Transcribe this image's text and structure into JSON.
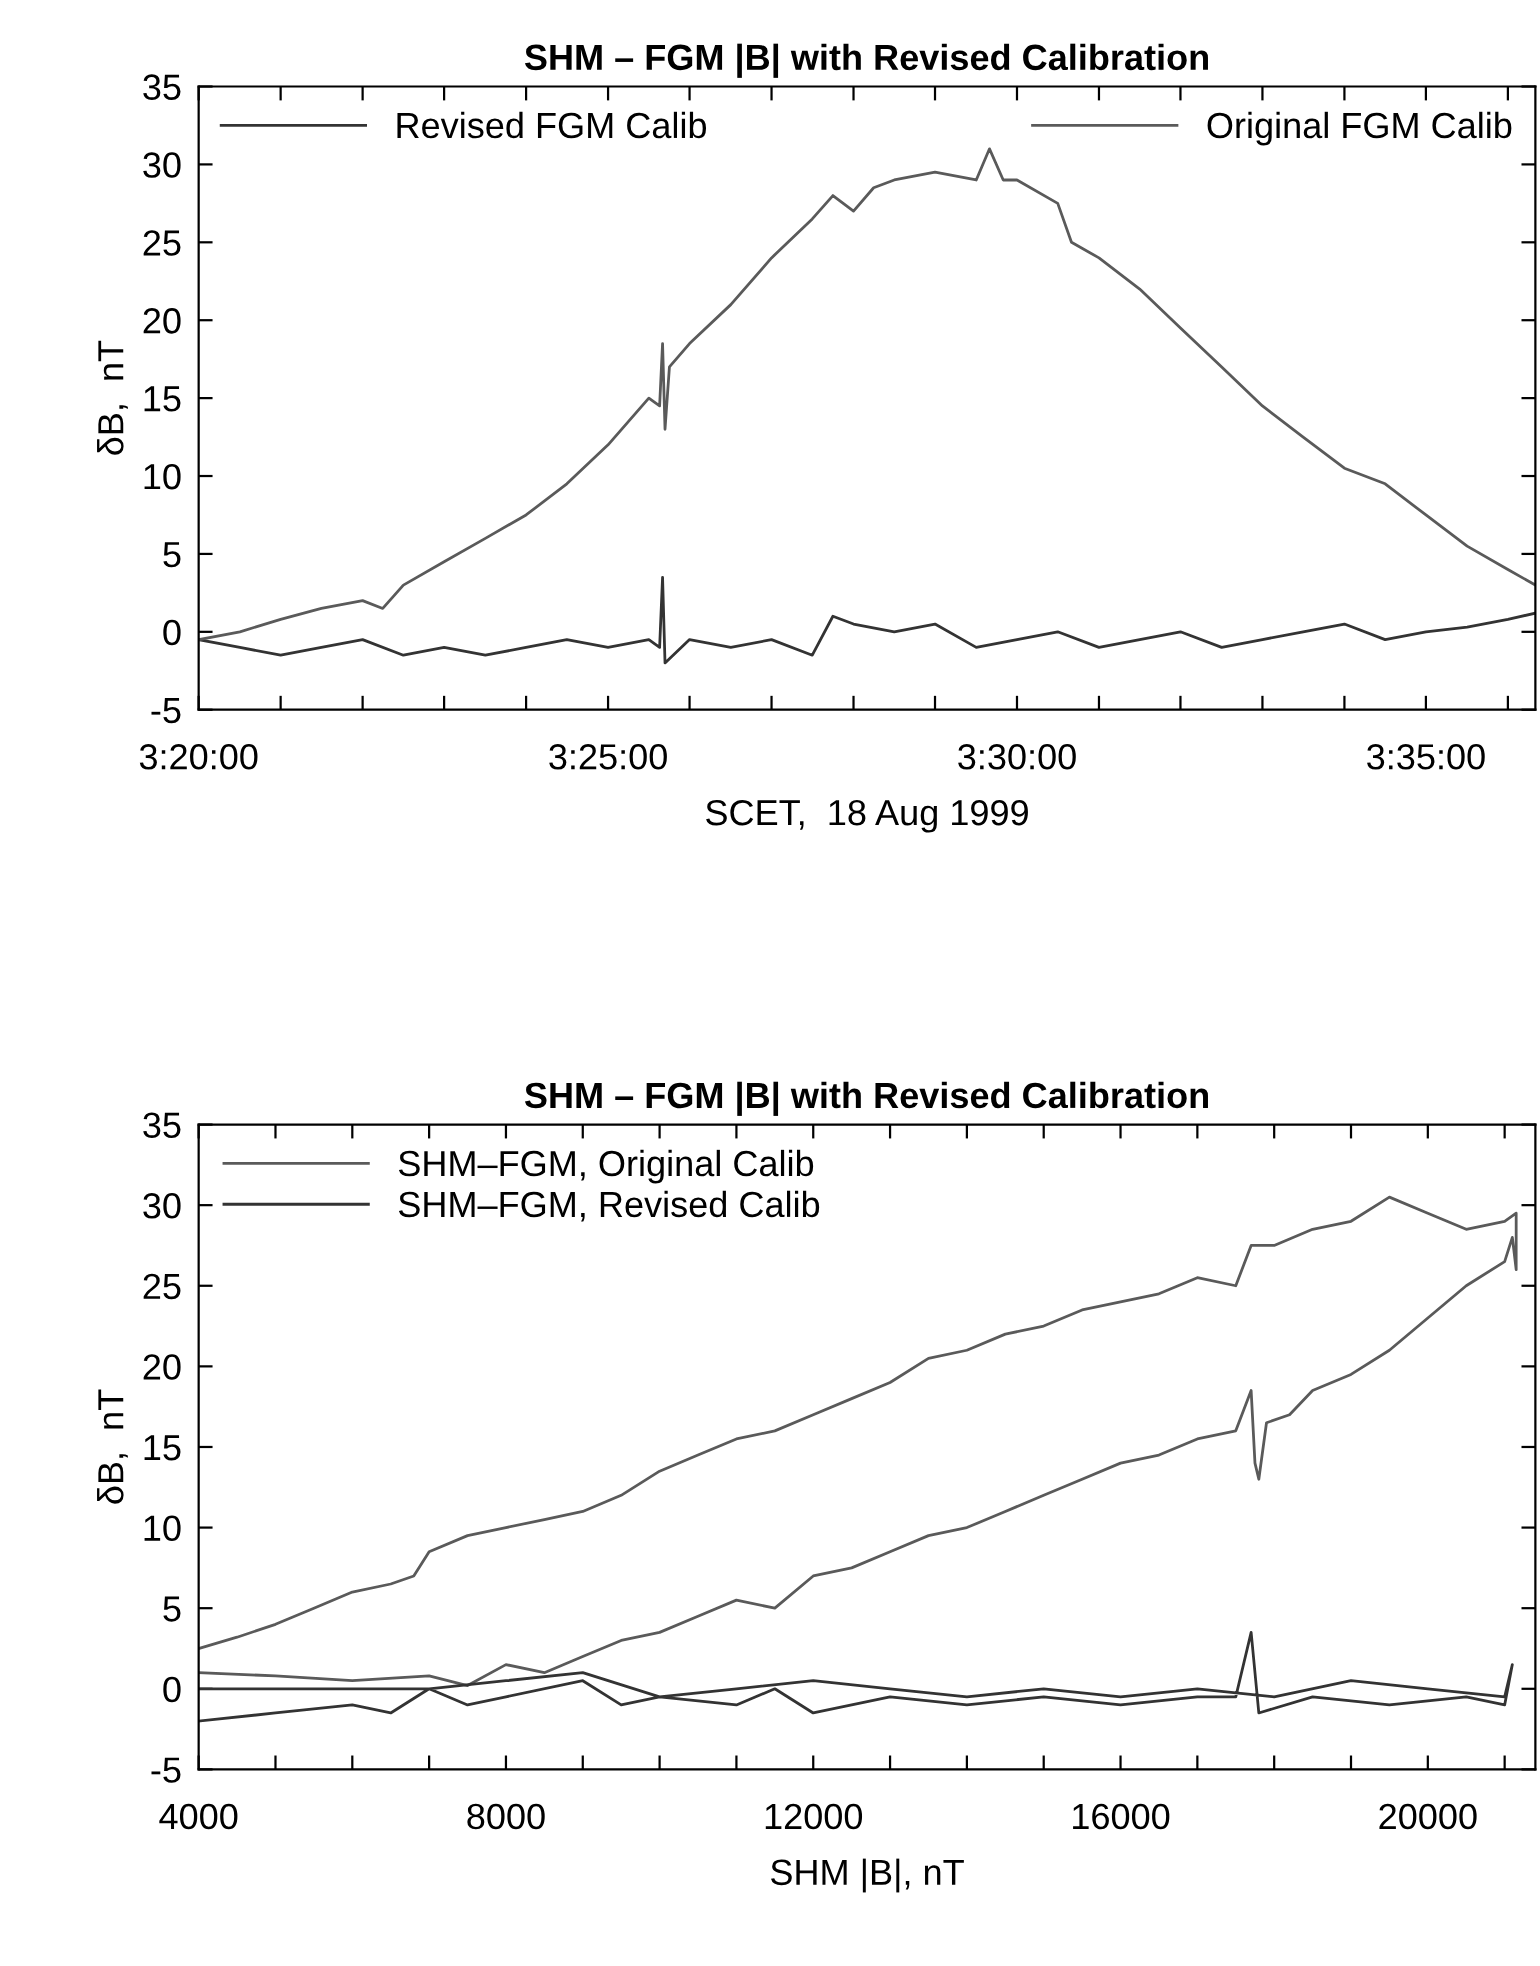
{
  "chart_data": [
    {
      "type": "line",
      "title": "SHM – FGM |B| with Revised Calibration",
      "xlabel": "SCET,  18 Aug 1999",
      "ylabel": "δB,  nT",
      "xlim": [
        3.3333,
        3.6056
      ],
      "xticks": [
        {
          "value": 3.3333,
          "label": "3:20:00"
        },
        {
          "value": 3.35,
          "label": null
        },
        {
          "value": 3.3667,
          "label": null
        },
        {
          "value": 3.3833,
          "label": null
        },
        {
          "value": 3.4,
          "label": null
        },
        {
          "value": 3.4167,
          "label": "3:25:00"
        },
        {
          "value": 3.4333,
          "label": null
        },
        {
          "value": 3.45,
          "label": null
        },
        {
          "value": 3.4667,
          "label": null
        },
        {
          "value": 3.4833,
          "label": null
        },
        {
          "value": 3.5,
          "label": "3:30:00"
        },
        {
          "value": 3.5167,
          "label": null
        },
        {
          "value": 3.5333,
          "label": null
        },
        {
          "value": 3.55,
          "label": null
        },
        {
          "value": 3.5667,
          "label": null
        },
        {
          "value": 3.5833,
          "label": "3:35:00"
        },
        {
          "value": 3.6,
          "label": null
        }
      ],
      "ylim": [
        -5,
        35
      ],
      "yticks": [
        -5,
        0,
        5,
        10,
        15,
        20,
        25,
        30,
        35
      ],
      "legend": "top",
      "grid": false,
      "series": [
        {
          "name": "Revised FGM Calib",
          "color": "#333333",
          "x": [
            3.3333,
            3.3417,
            3.35,
            3.3583,
            3.3667,
            3.375,
            3.3833,
            3.3917,
            3.4,
            3.4083,
            3.4167,
            3.425,
            3.4272,
            3.4278,
            3.4283,
            3.4333,
            3.4417,
            3.45,
            3.4583,
            3.4625,
            3.4667,
            3.475,
            3.4833,
            3.4917,
            3.5,
            3.5083,
            3.5167,
            3.525,
            3.5333,
            3.5417,
            3.55,
            3.5583,
            3.5667,
            3.575,
            3.5833,
            3.5917,
            3.6,
            3.6056
          ],
          "values": [
            -0.5,
            -1,
            -1.5,
            -1,
            -0.5,
            -1.5,
            -1,
            -1.5,
            -1,
            -0.5,
            -1,
            -0.5,
            -1,
            3.5,
            -2,
            -0.5,
            -1,
            -0.5,
            -1.5,
            1,
            0.5,
            0,
            0.5,
            -1,
            -0.5,
            0,
            -1,
            -0.5,
            0,
            -1,
            -0.5,
            0,
            0.5,
            -0.5,
            0,
            0.3,
            0.8,
            1.2
          ]
        },
        {
          "name": "Original FGM Calib",
          "color": "#5a5a5a",
          "x": [
            3.3333,
            3.3417,
            3.35,
            3.3583,
            3.3667,
            3.3708,
            3.375,
            3.3833,
            3.3917,
            3.4,
            3.4083,
            3.4167,
            3.425,
            3.4272,
            3.4278,
            3.4283,
            3.4292,
            3.4333,
            3.4417,
            3.45,
            3.4583,
            3.4625,
            3.4667,
            3.4708,
            3.475,
            3.4833,
            3.4917,
            3.4944,
            3.4972,
            3.5,
            3.5083,
            3.5111,
            3.5167,
            3.525,
            3.5333,
            3.5417,
            3.55,
            3.5583,
            3.5667,
            3.575,
            3.5833,
            3.5917,
            3.6,
            3.6056
          ],
          "values": [
            -0.5,
            0,
            0.8,
            1.5,
            2,
            1.5,
            3,
            4.5,
            6,
            7.5,
            9.5,
            12,
            15,
            14.5,
            18.5,
            13,
            17,
            18.5,
            21,
            24,
            26.5,
            28,
            27,
            28.5,
            29,
            29.5,
            29,
            31,
            29,
            29,
            27.5,
            25,
            24,
            22,
            19.5,
            17,
            14.5,
            12.5,
            10.5,
            9.5,
            7.5,
            5.5,
            4,
            3
          ]
        }
      ]
    },
    {
      "type": "line",
      "title": "SHM – FGM |B| with Revised Calibration",
      "xlabel": "SHM |B|, nT",
      "ylabel": "δB,  nT",
      "xlim": [
        4000,
        21400
      ],
      "xticks": [
        4000,
        {
          "value": 5000,
          "label": null
        },
        {
          "value": 6000,
          "label": null
        },
        {
          "value": 7000,
          "label": null
        },
        8000,
        {
          "value": 9000,
          "label": null
        },
        {
          "value": 10000,
          "label": null
        },
        {
          "value": 11000,
          "label": null
        },
        12000,
        {
          "value": 13000,
          "label": null
        },
        {
          "value": 14000,
          "label": null
        },
        {
          "value": 15000,
          "label": null
        },
        16000,
        {
          "value": 17000,
          "label": null
        },
        {
          "value": 18000,
          "label": null
        },
        {
          "value": 19000,
          "label": null
        },
        20000,
        {
          "value": 21000,
          "label": null
        }
      ],
      "ylim": [
        -5,
        35
      ],
      "yticks": [
        -5,
        0,
        5,
        10,
        15,
        20,
        25,
        30,
        35
      ],
      "legend": "top left",
      "grid": false,
      "series": [
        {
          "name": "SHM–FGM, Original Calib",
          "color": "#5a5a5a",
          "x": [
            4000,
            5000,
            6000,
            7000,
            7500,
            8000,
            8500,
            9000,
            9500,
            10000,
            10500,
            11000,
            11500,
            12000,
            12500,
            13000,
            13500,
            14000,
            14500,
            15000,
            15500,
            16000,
            16500,
            17000,
            17500,
            17700,
            17750,
            17800,
            17900,
            18200,
            18500,
            19000,
            19500,
            20000,
            20500,
            21000,
            21100,
            21150,
            21150,
            21000,
            20500,
            20000,
            19500,
            19000,
            18500,
            18000,
            17700,
            17500,
            17000,
            16500,
            16000,
            15500,
            15000,
            14500,
            14000,
            13500,
            13000,
            12500,
            12000,
            11500,
            11000,
            10500,
            10000,
            9500,
            9000,
            8500,
            8000,
            7500,
            7000,
            6800,
            6500,
            6000,
            5500,
            5000,
            4500,
            4000
          ],
          "values": [
            1,
            0.8,
            0.5,
            0.8,
            0.2,
            1.5,
            1,
            2,
            3,
            3.5,
            4.5,
            5.5,
            5,
            7,
            7.5,
            8.5,
            9.5,
            10,
            11,
            12,
            13,
            14,
            14.5,
            15.5,
            16,
            18.5,
            14,
            13,
            16.5,
            17,
            18.5,
            19.5,
            21,
            23,
            25,
            26.5,
            28,
            26,
            29.5,
            29,
            28.5,
            29.5,
            30.5,
            29,
            28.5,
            27.5,
            27.5,
            25,
            25.5,
            24.5,
            24,
            23.5,
            22.5,
            22,
            21,
            20.5,
            19,
            18,
            17,
            16,
            15.5,
            14.5,
            13.5,
            12,
            11,
            10.5,
            10,
            9.5,
            8.5,
            7,
            6.5,
            6,
            5,
            4,
            3.2,
            2.5
          ]
        },
        {
          "name": "SHM–FGM, Revised Calib",
          "color": "#333333",
          "x": [
            4000,
            5000,
            6000,
            6500,
            7000,
            7500,
            8000,
            9000,
            9500,
            10000,
            11000,
            11500,
            12000,
            13000,
            14000,
            15000,
            16000,
            17000,
            17500,
            17700,
            17800,
            18500,
            19500,
            20500,
            21000,
            21100,
            21000,
            20000,
            19000,
            18000,
            17000,
            16000,
            15000,
            14000,
            13000,
            12000,
            11000,
            10000,
            9000,
            8000,
            7000,
            6000,
            5000,
            4000
          ],
          "values": [
            -2,
            -1.5,
            -1,
            -1.5,
            0,
            -1,
            -0.5,
            0.5,
            -1,
            -0.5,
            -1,
            0,
            -1.5,
            -0.5,
            -1,
            -0.5,
            -1,
            -0.5,
            -0.5,
            3.5,
            -1.5,
            -0.5,
            -1,
            -0.5,
            -1,
            1.5,
            -0.5,
            0,
            0.5,
            -0.5,
            0,
            -0.5,
            0,
            -0.5,
            0,
            0.5,
            0,
            -0.5,
            1,
            0.5,
            0,
            0,
            0,
            0
          ]
        }
      ]
    }
  ]
}
